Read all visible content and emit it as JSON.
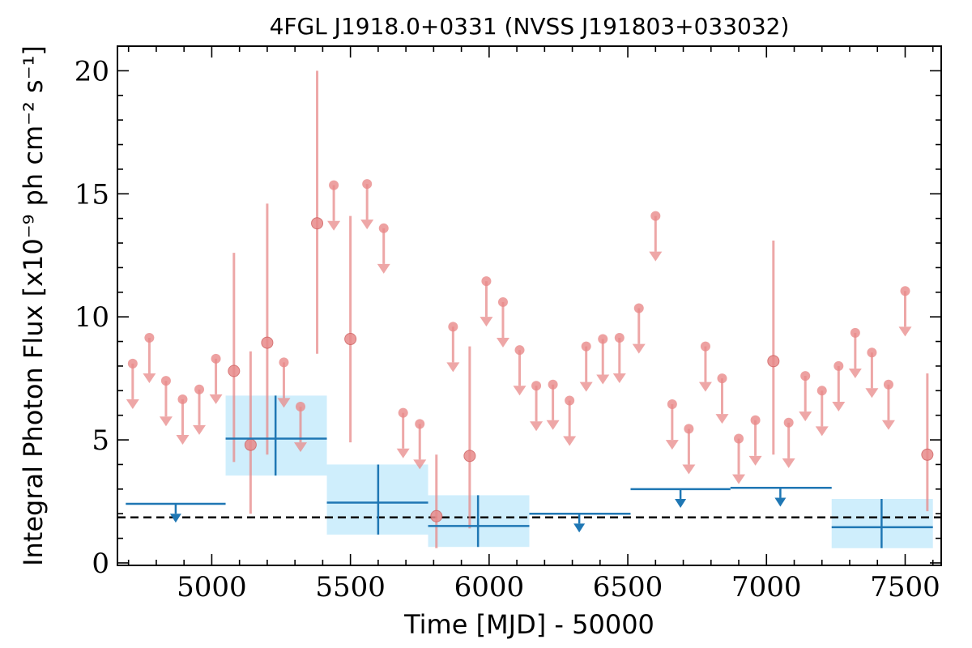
{
  "chart_data": {
    "type": "scatter",
    "title": "4FGL J1918.0+0331 (NVSS J191803+033032)",
    "xlabel": "Time [MJD] - 50000",
    "ylabel": "Integral Photon Flux [x10⁻⁹ ph cm⁻² s⁻¹]",
    "xlim": [
      4660,
      7630
    ],
    "ylim": [
      -0.1,
      21
    ],
    "xticks": [
      5000,
      5500,
      6000,
      6500,
      7000,
      7500
    ],
    "xtick_labels": [
      "5000",
      "5500",
      "6000",
      "6500",
      "7000",
      "7500"
    ],
    "yticks": [
      0,
      5,
      10,
      15,
      20
    ],
    "ytick_labels": [
      "0",
      "5",
      "10",
      "15",
      "20"
    ],
    "reference_line": {
      "y": 1.85,
      "style": "dashed",
      "color": "#000000"
    },
    "colors": {
      "monthly": "#e88a8a",
      "yearly": "#1f77b4",
      "yearly_band": "#cfeefc"
    },
    "series": [
      {
        "binning": "monthly",
        "detections": [
          {
            "x": 5080,
            "y": 7.8,
            "ylo": 4.1,
            "yhi": 12.6
          },
          {
            "x": 5140,
            "y": 4.8,
            "ylo": 2.0,
            "yhi": 8.6
          },
          {
            "x": 5200,
            "y": 8.95,
            "ylo": 4.4,
            "yhi": 14.6
          },
          {
            "x": 5380,
            "y": 13.8,
            "ylo": 8.5,
            "yhi": 20.0
          },
          {
            "x": 5500,
            "y": 9.1,
            "ylo": 4.9,
            "yhi": 14.1
          },
          {
            "x": 5810,
            "y": 1.9,
            "ylo": 0.6,
            "yhi": 4.4
          },
          {
            "x": 5930,
            "y": 4.35,
            "ylo": 1.4,
            "yhi": 8.8
          },
          {
            "x": 7025,
            "y": 8.2,
            "ylo": 4.4,
            "yhi": 13.1
          },
          {
            "x": 7580,
            "y": 4.4,
            "ylo": 2.1,
            "yhi": 7.7
          }
        ],
        "upper_limits": [
          {
            "x": 4715,
            "y": 8.1
          },
          {
            "x": 4775,
            "y": 9.15
          },
          {
            "x": 4835,
            "y": 7.4
          },
          {
            "x": 4895,
            "y": 6.65
          },
          {
            "x": 4955,
            "y": 7.05
          },
          {
            "x": 5015,
            "y": 8.3
          },
          {
            "x": 5260,
            "y": 8.15
          },
          {
            "x": 5320,
            "y": 6.35
          },
          {
            "x": 5440,
            "y": 15.35
          },
          {
            "x": 5560,
            "y": 15.4
          },
          {
            "x": 5620,
            "y": 13.6
          },
          {
            "x": 5690,
            "y": 6.1
          },
          {
            "x": 5750,
            "y": 5.65
          },
          {
            "x": 5870,
            "y": 9.6
          },
          {
            "x": 5990,
            "y": 11.45
          },
          {
            "x": 6050,
            "y": 10.6
          },
          {
            "x": 6110,
            "y": 8.65
          },
          {
            "x": 6170,
            "y": 7.2
          },
          {
            "x": 6230,
            "y": 7.25
          },
          {
            "x": 6290,
            "y": 6.6
          },
          {
            "x": 6350,
            "y": 8.8
          },
          {
            "x": 6410,
            "y": 9.1
          },
          {
            "x": 6470,
            "y": 9.15
          },
          {
            "x": 6540,
            "y": 10.35
          },
          {
            "x": 6600,
            "y": 14.1
          },
          {
            "x": 6660,
            "y": 6.45
          },
          {
            "x": 6720,
            "y": 5.45
          },
          {
            "x": 6780,
            "y": 8.8
          },
          {
            "x": 6840,
            "y": 7.5
          },
          {
            "x": 6900,
            "y": 5.05
          },
          {
            "x": 6960,
            "y": 5.8
          },
          {
            "x": 7080,
            "y": 5.7
          },
          {
            "x": 7140,
            "y": 7.6
          },
          {
            "x": 7200,
            "y": 7.0
          },
          {
            "x": 7260,
            "y": 8.0
          },
          {
            "x": 7320,
            "y": 9.35
          },
          {
            "x": 7380,
            "y": 8.55
          },
          {
            "x": 7440,
            "y": 7.25
          },
          {
            "x": 7500,
            "y": 11.05
          }
        ]
      },
      {
        "binning": "yearly",
        "detections": [
          {
            "x": 5230,
            "xlo": 5050,
            "xhi": 5415,
            "y": 5.05,
            "ylo": 3.55,
            "yhi": 6.8
          },
          {
            "x": 5600,
            "xlo": 5415,
            "xhi": 5780,
            "y": 2.45,
            "ylo": 1.15,
            "yhi": 4.0
          },
          {
            "x": 5960,
            "xlo": 5780,
            "xhi": 6145,
            "y": 1.5,
            "ylo": 0.65,
            "yhi": 2.75
          },
          {
            "x": 7415,
            "xlo": 7235,
            "xhi": 7600,
            "y": 1.45,
            "ylo": 0.6,
            "yhi": 2.6
          }
        ],
        "upper_limits": [
          {
            "x": 4870,
            "xlo": 4690,
            "xhi": 5050,
            "y": 2.4
          },
          {
            "x": 6325,
            "xlo": 6145,
            "xhi": 6510,
            "y": 2.0
          },
          {
            "x": 6690,
            "xlo": 6510,
            "xhi": 6870,
            "y": 3.0
          },
          {
            "x": 7050,
            "xlo": 6870,
            "xhi": 7235,
            "y": 3.05
          }
        ]
      }
    ]
  }
}
